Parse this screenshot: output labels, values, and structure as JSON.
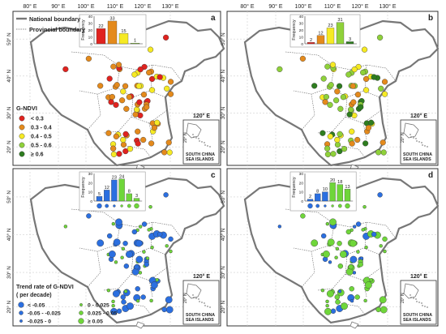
{
  "top_axis_labels": [
    "80° E",
    "90° E",
    "100° E",
    "110° E",
    "120° E",
    "130° E"
  ],
  "lat_labels_left": [
    "50° N",
    "40° N",
    "30° N",
    "20° N"
  ],
  "lat_labels_inset": [
    "20° N",
    "0°"
  ],
  "inset_lon_label": "120° E",
  "inset_region_label": [
    "SOUTH CHINA",
    "SEA ISLANDS"
  ],
  "legend_boundaries": {
    "national": "National boundary",
    "provincial": "Provincial boundary"
  },
  "legend_gndvi": {
    "title": "G-NDVI",
    "items": [
      {
        "label": "< 0.3",
        "color": "#e0231f"
      },
      {
        "label": "0.3 - 0.4",
        "color": "#e48a1c"
      },
      {
        "label": "0.4 - 0.5",
        "color": "#f6ea24"
      },
      {
        "label": "0.5 - 0.6",
        "color": "#8fd13a"
      },
      {
        "label": "≥ 0.6",
        "color": "#2e7d1f"
      }
    ]
  },
  "legend_trend": {
    "title": "Trend rate of G-NDVI",
    "subtitle": "( per decade)",
    "items": [
      {
        "label": "< -0.05",
        "color": "#2b6fe0",
        "size": "large"
      },
      {
        "label": "-0.05 - -0.025",
        "color": "#2b6fe0",
        "size": "medium"
      },
      {
        "label": "-0.025 - 0",
        "color": "#2b6fe0",
        "size": "small"
      },
      {
        "label": "0 - 0.025",
        "color": "#6fd63a",
        "size": "small"
      },
      {
        "label": "0.025 - 0.05",
        "color": "#6fd63a",
        "size": "medium"
      },
      {
        "label": "≥ 0.05",
        "color": "#6fd63a",
        "size": "large"
      }
    ]
  },
  "panels": [
    {
      "id": "a",
      "letter": "a",
      "hist": {
        "ylabel": "Frequency",
        "yticks": [
          "40",
          "30",
          "20",
          "10",
          "0"
        ],
        "ymax": 40,
        "values": [
          22,
          33,
          15,
          1
        ],
        "colors": [
          "#e0231f",
          "#e48a1c",
          "#f6ea24",
          "#8fd13a"
        ],
        "show_symbols": false
      }
    },
    {
      "id": "b",
      "letter": "b",
      "hist": {
        "ylabel": "Frequency",
        "yticks": [
          "40",
          "30",
          "20",
          "10",
          "0"
        ],
        "ymax": 40,
        "values": [
          2,
          12,
          23,
          31,
          3
        ],
        "colors": [
          "#e0231f",
          "#e48a1c",
          "#f6ea24",
          "#8fd13a",
          "#2e7d1f"
        ],
        "show_symbols": false
      }
    },
    {
      "id": "c",
      "letter": "c",
      "hist": {
        "ylabel": "Frequency",
        "yticks": [
          "30",
          "20",
          "10",
          "0"
        ],
        "ymax": 30,
        "values": [
          5,
          12,
          23,
          24,
          8,
          3
        ],
        "colors": [
          "#2b6fe0",
          "#2b6fe0",
          "#2b6fe0",
          "#6fd63a",
          "#6fd63a",
          "#6fd63a"
        ],
        "show_symbols": true
      }
    },
    {
      "id": "d",
      "letter": "d",
      "hist": {
        "ylabel": "Frequency",
        "yticks": [
          "30",
          "20",
          "10",
          "0"
        ],
        "ymax": 30,
        "values": [
          2,
          8,
          10,
          20,
          18,
          13
        ],
        "colors": [
          "#2b6fe0",
          "#2b6fe0",
          "#2b6fe0",
          "#6fd63a",
          "#6fd63a",
          "#6fd63a"
        ],
        "show_symbols": true
      }
    }
  ]
}
